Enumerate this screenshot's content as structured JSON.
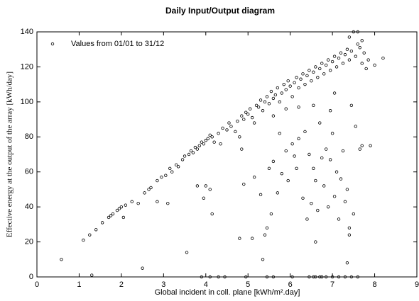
{
  "chart_data": {
    "type": "scatter",
    "title": "Daily Input/Output diagram",
    "xlabel": "Global incident in coll. plane [kWh/m².day]",
    "ylabel": "Effective energy at the output of the array [kWh/day]",
    "xlim": [
      0,
      9
    ],
    "ylim": [
      0,
      140
    ],
    "xticks": [
      0,
      1,
      2,
      3,
      4,
      5,
      6,
      7,
      8,
      9
    ],
    "yticks": [
      0,
      20,
      40,
      60,
      80,
      100,
      120,
      140
    ],
    "legend": "upper left",
    "series": [
      {
        "name": "Values from 01/01 to 31/12",
        "color": "#000000",
        "x": [
          0.58,
          1.1,
          1.25,
          1.4,
          1.55,
          1.7,
          1.75,
          1.8,
          1.9,
          1.95,
          2.0,
          2.05,
          2.1,
          2.25,
          2.4,
          2.55,
          2.65,
          2.7,
          2.85,
          2.95,
          3.05,
          3.15,
          3.2,
          3.3,
          3.35,
          3.45,
          3.5,
          3.6,
          3.65,
          3.7,
          3.75,
          3.8,
          3.85,
          3.9,
          3.95,
          4.0,
          4.05,
          4.1,
          4.15,
          4.2,
          4.3,
          4.4,
          4.5,
          4.55,
          4.6,
          4.7,
          4.75,
          4.85,
          4.9,
          4.95,
          5.0,
          5.05,
          5.1,
          5.2,
          5.25,
          5.3,
          5.35,
          5.4,
          5.45,
          5.5,
          5.55,
          5.6,
          5.65,
          5.7,
          5.75,
          5.8,
          5.85,
          5.9,
          5.95,
          6.0,
          6.05,
          6.1,
          6.15,
          6.2,
          6.25,
          6.3,
          6.35,
          6.4,
          6.45,
          6.5,
          6.55,
          6.6,
          6.65,
          6.7,
          6.75,
          6.8,
          6.85,
          6.9,
          6.95,
          7.0,
          7.05,
          7.1,
          7.15,
          7.2,
          7.25,
          7.3,
          7.35,
          7.4,
          7.45,
          7.5,
          7.55,
          7.6,
          7.65,
          7.7,
          7.75,
          7.8,
          7.85,
          8.0,
          8.2,
          6.95,
          7.05,
          6.55,
          6.2,
          5.9,
          5.6,
          5.15,
          4.8,
          4.35,
          7.6,
          7.4,
          7.7,
          1.3,
          2.5,
          3.1,
          3.55,
          3.8,
          3.95,
          4.0,
          4.1,
          4.15,
          2.85,
          4.85,
          4.9,
          4.8,
          5.1,
          5.15,
          5.3,
          5.4,
          5.45,
          5.5,
          5.55,
          5.6,
          5.7,
          5.75,
          5.8,
          5.9,
          5.95,
          6.05,
          6.1,
          6.15,
          6.2,
          6.3,
          6.35,
          6.4,
          6.45,
          6.5,
          6.55,
          6.6,
          6.65,
          6.7,
          6.75,
          6.8,
          6.85,
          6.9,
          6.95,
          7.0,
          7.05,
          7.1,
          7.15,
          7.2,
          7.25,
          7.3,
          7.35,
          7.4,
          7.45,
          7.5,
          7.55,
          7.65,
          7.7,
          7.9,
          7.4,
          6.6,
          5.35,
          7.35,
          3.9,
          4.1,
          4.3,
          4.45,
          4.95,
          5.45,
          5.6,
          6.05,
          6.45,
          6.55,
          6.6,
          6.7,
          6.75,
          6.85,
          7.0,
          7.15,
          7.3,
          7.45,
          7.6
        ],
        "values": [
          10,
          21,
          24,
          27,
          31,
          34,
          35,
          36,
          38,
          39,
          40,
          34,
          41,
          43,
          42,
          48,
          50,
          51,
          55,
          57,
          58,
          62,
          60,
          64,
          63,
          67,
          69,
          70,
          72,
          71,
          74,
          73,
          75,
          77,
          76,
          78,
          79,
          81,
          80,
          77,
          82,
          85,
          84,
          88,
          86,
          83,
          89,
          92,
          90,
          94,
          93,
          96,
          91,
          98,
          97,
          101,
          95,
          100,
          103,
          99,
          106,
          102,
          104,
          108,
          100,
          105,
          110,
          107,
          112,
          109,
          103,
          111,
          114,
          108,
          113,
          116,
          110,
          115,
          118,
          112,
          117,
          120,
          114,
          119,
          122,
          116,
          121,
          124,
          118,
          123,
          126,
          120,
          125,
          128,
          122,
          127,
          130,
          124,
          129,
          140,
          126,
          133,
          131,
          122,
          128,
          119,
          124,
          121,
          125,
          95,
          105,
          98,
          97,
          96,
          92,
          88,
          80,
          76,
          140,
          137,
          135,
          1,
          5,
          42,
          14,
          52,
          45,
          52,
          50,
          36,
          43,
          73,
          53,
          22,
          22,
          57,
          47,
          24,
          28,
          62,
          36,
          66,
          48,
          82,
          59,
          72,
          55,
          76,
          69,
          62,
          79,
          45,
          83,
          33,
          70,
          42,
          62,
          55,
          38,
          88,
          68,
          52,
          73,
          40,
          67,
          82,
          46,
          60,
          33,
          56,
          72,
          43,
          50,
          28,
          98,
          36,
          86,
          73,
          75,
          75,
          24,
          20,
          10,
          8,
          0,
          0,
          0,
          0,
          0,
          0,
          0,
          0,
          0,
          0,
          0,
          0,
          0,
          0,
          0,
          0,
          0,
          0,
          0
        ]
      }
    ]
  }
}
